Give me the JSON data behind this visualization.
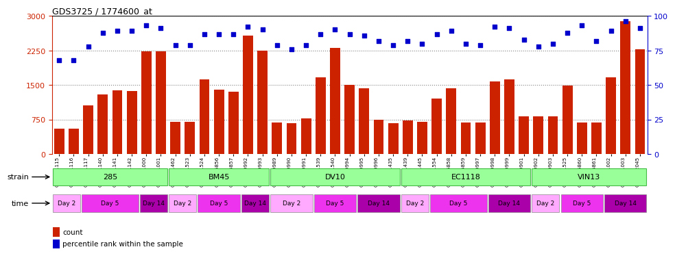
{
  "title": "GDS3725 / 1774600_at",
  "samples": [
    "GSM291115",
    "GSM291116",
    "GSM291117",
    "GSM291140",
    "GSM291141",
    "GSM291142",
    "GSM291000",
    "GSM291001",
    "GSM291462",
    "GSM291523",
    "GSM291524",
    "GSM296856",
    "GSM296857",
    "GSM290992",
    "GSM290993",
    "GSM290989",
    "GSM290990",
    "GSM290991",
    "GSM291539",
    "GSM291540",
    "GSM290994",
    "GSM290995",
    "GSM290996",
    "GSM291435",
    "GSM291439",
    "GSM291445",
    "GSM291554",
    "GSM296858",
    "GSM296859",
    "GSM290997",
    "GSM290998",
    "GSM290999",
    "GSM290901",
    "GSM290902",
    "GSM290903",
    "GSM291525",
    "GSM296860",
    "GSM296861",
    "GSM291002",
    "GSM291003",
    "GSM292045"
  ],
  "counts": [
    550,
    550,
    1050,
    1300,
    1380,
    1370,
    2230,
    2230,
    700,
    700,
    1620,
    1400,
    1350,
    2570,
    2240,
    690,
    670,
    780,
    1660,
    2300,
    1500,
    1420,
    750,
    670,
    730,
    700,
    1200,
    1430,
    680,
    680,
    1570,
    1620,
    820,
    820,
    820,
    1480,
    680,
    680,
    1660,
    2880,
    2280
  ],
  "percentile": [
    68,
    68,
    78,
    88,
    89,
    89,
    93,
    91,
    79,
    79,
    87,
    87,
    87,
    92,
    90,
    79,
    76,
    79,
    87,
    90,
    87,
    86,
    82,
    79,
    82,
    80,
    87,
    89,
    80,
    79,
    92,
    91,
    83,
    78,
    80,
    88,
    93,
    82,
    89,
    96,
    91
  ],
  "bar_color": "#cc2200",
  "dot_color": "#0000cc",
  "left_axis_color": "#cc2200",
  "right_axis_color": "#0000cc",
  "strain_data": [
    {
      "label": "285",
      "start": 0,
      "end": 8
    },
    {
      "label": "BM45",
      "start": 8,
      "end": 15
    },
    {
      "label": "DV10",
      "start": 15,
      "end": 24
    },
    {
      "label": "EC1118",
      "start": 24,
      "end": 33
    },
    {
      "label": "VIN13",
      "start": 33,
      "end": 41
    }
  ],
  "time_data": [
    {
      "label": "Day 2",
      "start": 0,
      "end": 2,
      "color": "#ffaaff"
    },
    {
      "label": "Day 5",
      "start": 2,
      "end": 6,
      "color": "#ee33ee"
    },
    {
      "label": "Day 14",
      "start": 6,
      "end": 8,
      "color": "#aa00aa"
    },
    {
      "label": "Day 2",
      "start": 8,
      "end": 10,
      "color": "#ffaaff"
    },
    {
      "label": "Day 5",
      "start": 10,
      "end": 13,
      "color": "#ee33ee"
    },
    {
      "label": "Day 14",
      "start": 13,
      "end": 15,
      "color": "#aa00aa"
    },
    {
      "label": "Day 2",
      "start": 15,
      "end": 18,
      "color": "#ffaaff"
    },
    {
      "label": "Day 5",
      "start": 18,
      "end": 21,
      "color": "#ee33ee"
    },
    {
      "label": "Day 14",
      "start": 21,
      "end": 24,
      "color": "#aa00aa"
    },
    {
      "label": "Day 2",
      "start": 24,
      "end": 26,
      "color": "#ffaaff"
    },
    {
      "label": "Day 5",
      "start": 26,
      "end": 30,
      "color": "#ee33ee"
    },
    {
      "label": "Day 14",
      "start": 30,
      "end": 33,
      "color": "#aa00aa"
    },
    {
      "label": "Day 2",
      "start": 33,
      "end": 35,
      "color": "#ffaaff"
    },
    {
      "label": "Day 5",
      "start": 35,
      "end": 38,
      "color": "#ee33ee"
    },
    {
      "label": "Day 14",
      "start": 38,
      "end": 41,
      "color": "#aa00aa"
    }
  ],
  "strain_bg": "#99ff99",
  "strain_border": "#44bb44",
  "ylim_left": [
    0,
    3000
  ],
  "ylim_right": [
    0,
    100
  ],
  "yticks_left": [
    0,
    750,
    1500,
    2250,
    3000
  ],
  "yticks_right": [
    0,
    25,
    50,
    75,
    100
  ]
}
